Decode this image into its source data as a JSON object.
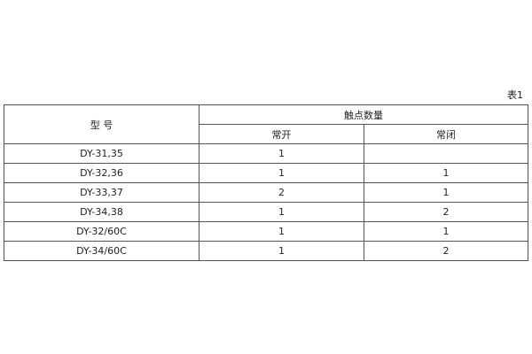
{
  "caption": "表1",
  "header": {
    "model": "型 号",
    "contacts": "触点数量",
    "no": "常开",
    "nc": "常闭"
  },
  "rows": [
    {
      "model": "DY-31,35",
      "no": "1",
      "nc": ""
    },
    {
      "model": "DY-32,36",
      "no": "1",
      "nc": "1"
    },
    {
      "model": "DY-33,37",
      "no": "2",
      "nc": "1"
    },
    {
      "model": "DY-34,38",
      "no": "1",
      "nc": "2"
    },
    {
      "model": "DY-32/60C",
      "no": "1",
      "nc": "1"
    },
    {
      "model": "DY-34/60C",
      "no": "1",
      "nc": "2"
    }
  ]
}
